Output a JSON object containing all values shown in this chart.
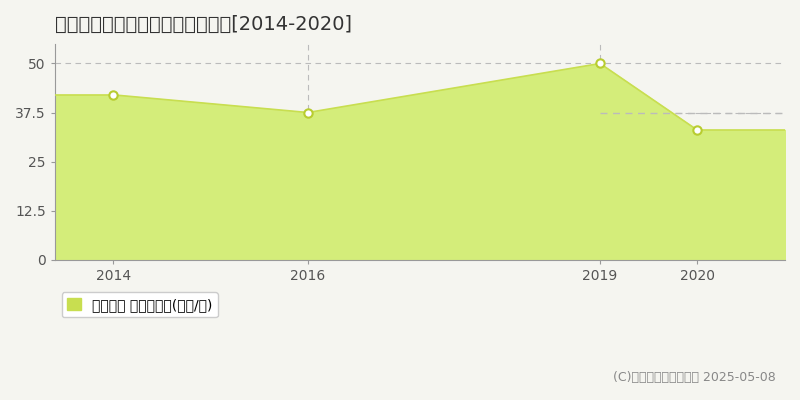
{
  "title": "和歌山市広瀬通丁　土地価格推移[2014-2020]",
  "years": [
    2014,
    2016,
    2019,
    2020
  ],
  "values": [
    42.0,
    37.5,
    50.0,
    33.0
  ],
  "xlim": [
    2013.4,
    2020.9
  ],
  "ylim": [
    0,
    55
  ],
  "yticks": [
    0,
    12.5,
    25,
    37.5,
    50
  ],
  "xticks": [
    2014,
    2016,
    2019,
    2020
  ],
  "fill_color": "#d4ed7a",
  "line_color": "#c8de50",
  "marker_color": "#b8cc30",
  "grid_color": "#bbbbbb",
  "background_color": "#f5f5f0",
  "plot_bg_color": "#f5f5f0",
  "legend_label": "土地価格 平均坪単価(万円/坪)",
  "legend_color": "#c8de50",
  "copyright_text": "(C)土地価格ドットコム 2025-05-08",
  "dashed_line_y": 37.5,
  "dashed_line_x_start": 2019.0,
  "dashed_line_color": "#bbbbbb",
  "title_fontsize": 14,
  "tick_fontsize": 10,
  "legend_fontsize": 10,
  "copyright_fontsize": 9
}
